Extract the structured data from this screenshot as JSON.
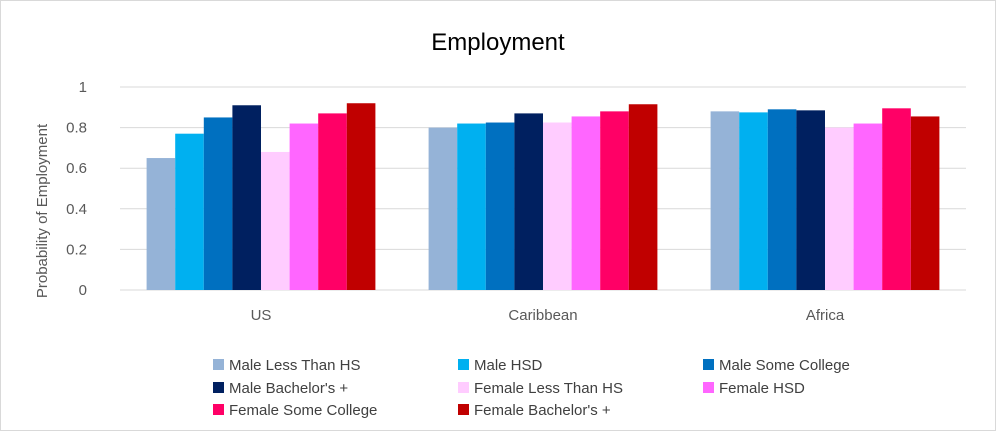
{
  "chart_data": {
    "type": "bar",
    "title": "Employment",
    "xlabel": "",
    "ylabel": "Probability of Employment",
    "ylim": [
      0,
      1
    ],
    "yticks": [
      "0",
      "0.2",
      "0.4",
      "0.6",
      "0.8",
      "1"
    ],
    "grid": true,
    "legend_position": "bottom",
    "categories": [
      "US",
      "Caribbean",
      "Africa"
    ],
    "series": [
      {
        "name": "Male Less Than HS",
        "color": "#95b3d7",
        "values": [
          0.65,
          0.8,
          0.88
        ]
      },
      {
        "name": "Male HSD",
        "color": "#00b0f0",
        "values": [
          0.77,
          0.82,
          0.875
        ]
      },
      {
        "name": "Male Some College",
        "color": "#0070c0",
        "values": [
          0.85,
          0.825,
          0.89
        ]
      },
      {
        "name": "Male Bachelor's +",
        "color": "#002060",
        "values": [
          0.91,
          0.87,
          0.885
        ]
      },
      {
        "name": "Female Less Than HS",
        "color": "#ffccff",
        "values": [
          0.68,
          0.825,
          0.8
        ]
      },
      {
        "name": "Female HSD",
        "color": "#ff66ff",
        "values": [
          0.82,
          0.855,
          0.82
        ]
      },
      {
        "name": "Female Some College",
        "color": "#ff0066",
        "values": [
          0.87,
          0.88,
          0.895
        ]
      },
      {
        "name": "Female Bachelor's +",
        "color": "#c00000",
        "values": [
          0.92,
          0.915,
          0.855
        ]
      }
    ]
  }
}
